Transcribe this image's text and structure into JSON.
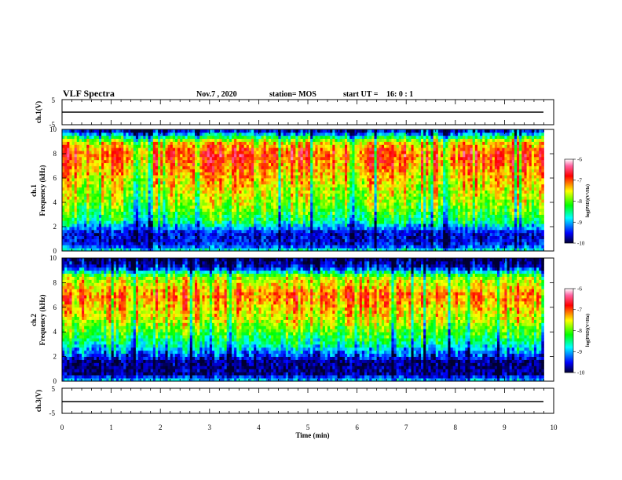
{
  "header": {
    "title": "VLF Spectra",
    "date": "Nov.7 , 2020",
    "station": "station= MOS",
    "start_label": "start  UT =",
    "start_time": "16: 0  : 1"
  },
  "chart_data": [
    {
      "type": "line",
      "name": "ch1-waveform",
      "ylabel": "ch.1(V)",
      "ylim": [
        -5,
        5
      ],
      "yticks": [
        "5",
        "-5"
      ],
      "xlim": [
        0,
        10
      ],
      "x": [
        0,
        9.8
      ],
      "y": [
        0,
        0
      ],
      "colors": {
        "trace": "#000000"
      }
    },
    {
      "type": "heatmap",
      "name": "ch1-spectrogram",
      "ylabel_line1": "ch.1",
      "ylabel_line2": "Frequency  (kHz)",
      "ylim": [
        0,
        10
      ],
      "yticks": [
        "0",
        "2",
        "4",
        "6",
        "8",
        "10"
      ],
      "xlim": [
        0,
        10
      ],
      "data_end_min": 9.8,
      "colorbar": {
        "range": [
          -10,
          -6
        ],
        "ticks": [
          "-6",
          "-7",
          "-8",
          "-9",
          "-10"
        ],
        "label": "log(PSD)(V²/Hz)"
      },
      "bands_khz_log": [
        [
          0,
          -8.5
        ],
        [
          0.5,
          -9.5
        ],
        [
          1.5,
          -9.6
        ],
        [
          2.5,
          -8.4
        ],
        [
          4,
          -7.8
        ],
        [
          6,
          -7.4
        ],
        [
          8,
          -6.9
        ],
        [
          9,
          -7.5
        ],
        [
          10,
          -9.8
        ]
      ]
    },
    {
      "type": "heatmap",
      "name": "ch2-spectrogram",
      "ylabel_line1": "ch.2",
      "ylabel_line2": "Frequency  (kHz)",
      "ylim": [
        0,
        10
      ],
      "yticks": [
        "0",
        "2",
        "4",
        "6",
        "8",
        "10"
      ],
      "xlim": [
        0,
        10
      ],
      "data_end_min": 9.8,
      "colorbar": {
        "range": [
          -10,
          -6
        ],
        "ticks": [
          "-6",
          "-7",
          "-8",
          "-9",
          "-10"
        ],
        "label": "log(PSD)(V²/Hz)"
      },
      "bands_khz_log": [
        [
          0,
          -8.8
        ],
        [
          0.6,
          -9.8
        ],
        [
          1.6,
          -9.8
        ],
        [
          3,
          -8.6
        ],
        [
          5,
          -7.6
        ],
        [
          7,
          -7.1
        ],
        [
          8.5,
          -7.8
        ],
        [
          9.2,
          -9.5
        ],
        [
          10,
          -10
        ]
      ]
    },
    {
      "type": "line",
      "name": "ch3-waveform",
      "ylabel": "ch.3(V)",
      "ylim": [
        -5,
        5
      ],
      "yticks": [
        "5",
        "-5"
      ],
      "xlim": [
        0,
        10
      ],
      "x": [
        0,
        9.8
      ],
      "y": [
        0,
        0
      ],
      "colors": {
        "trace": "#000000"
      }
    }
  ],
  "xaxis": {
    "label": "Time  (min)",
    "ticks": [
      "0",
      "1",
      "2",
      "3",
      "4",
      "5",
      "6",
      "7",
      "8",
      "9",
      "10"
    ]
  }
}
